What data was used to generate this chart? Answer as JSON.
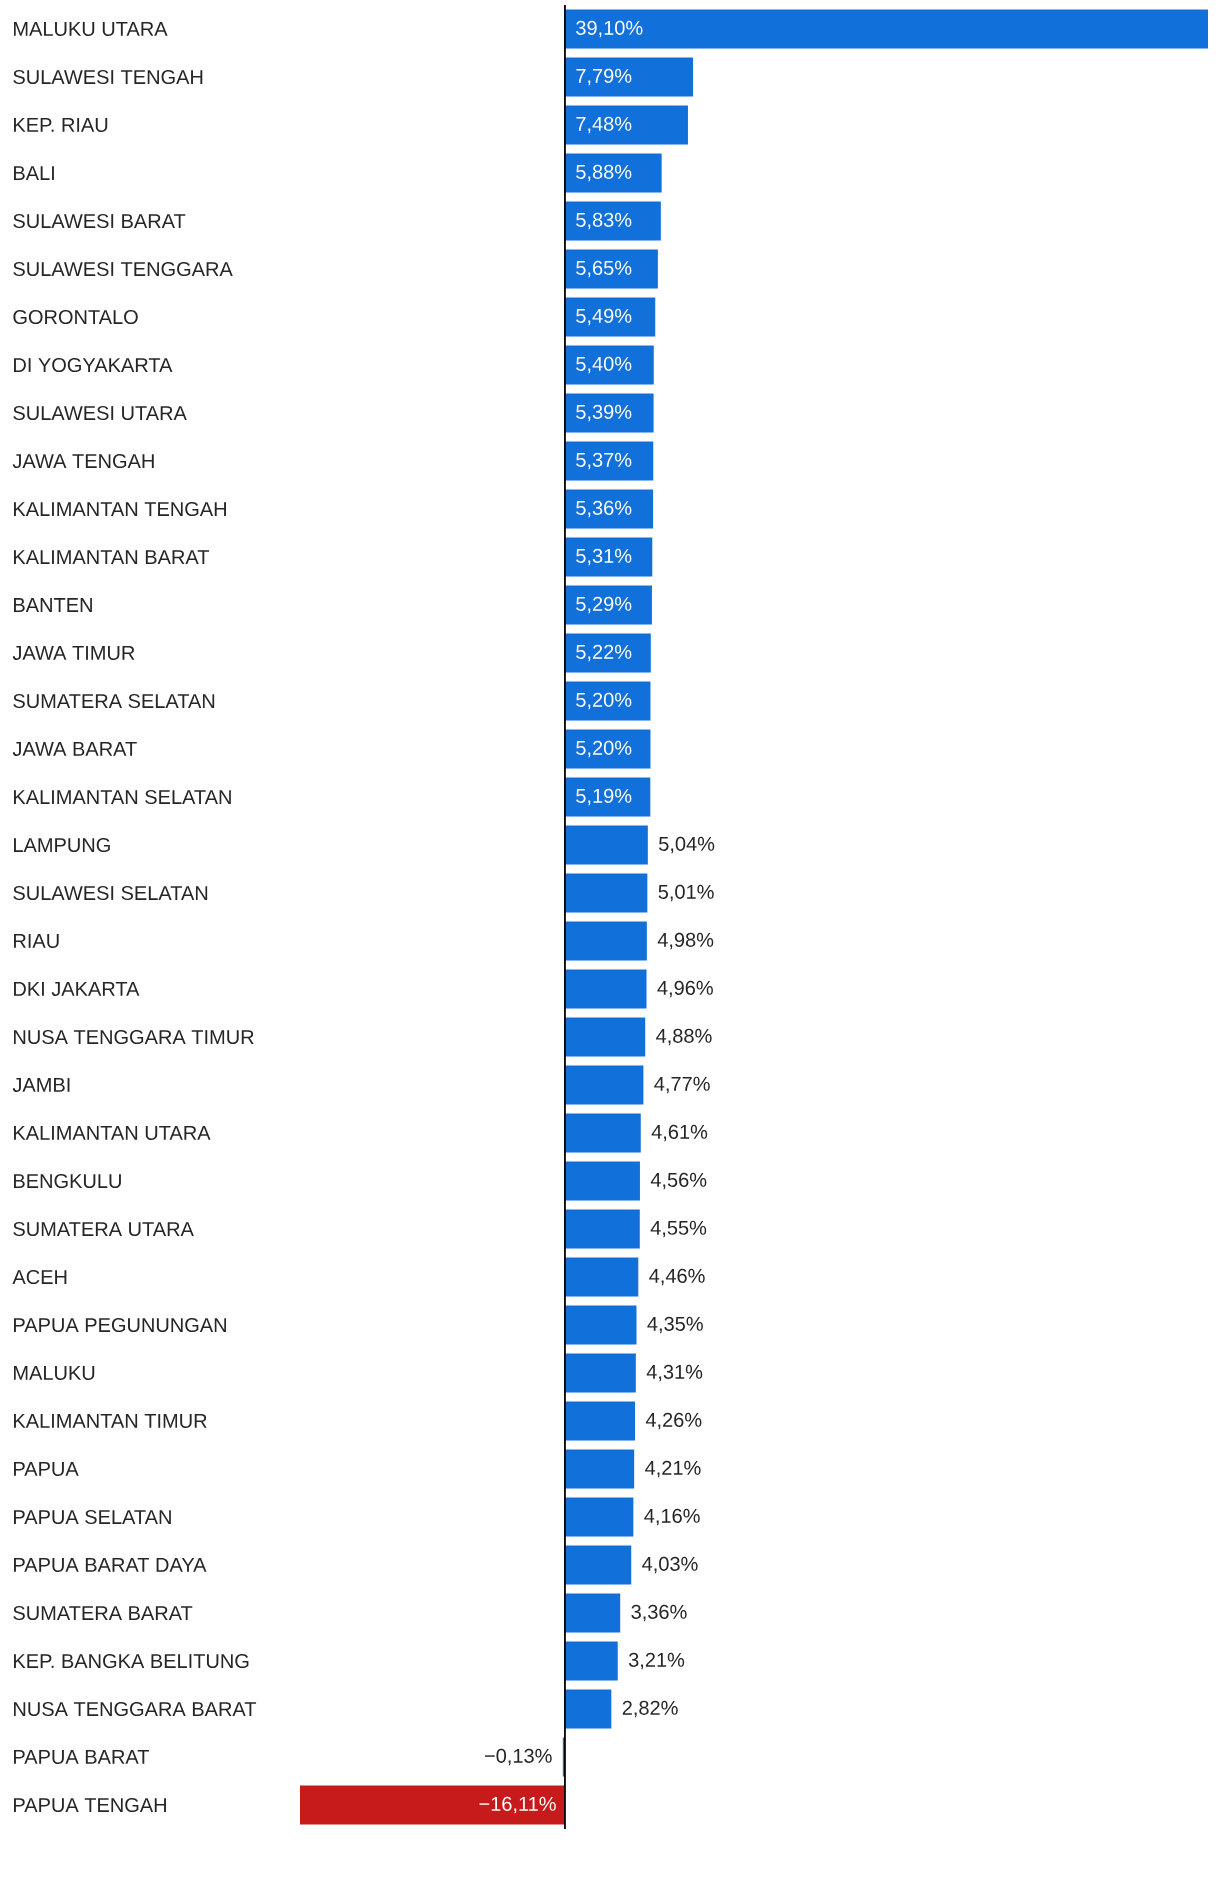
{
  "chart_data": {
    "type": "bar",
    "orientation": "horizontal",
    "categories": [
      "MALUKU UTARA",
      "SULAWESI TENGAH",
      "KEP. RIAU",
      "BALI",
      "SULAWESI BARAT",
      "SULAWESI TENGGARA",
      "GORONTALO",
      "DI YOGYAKARTA",
      "SULAWESI UTARA",
      "JAWA TENGAH",
      "KALIMANTAN TENGAH",
      "KALIMANTAN BARAT",
      "BANTEN",
      "JAWA TIMUR",
      "SUMATERA SELATAN",
      "JAWA BARAT",
      "KALIMANTAN SELATAN",
      "LAMPUNG",
      "SULAWESI SELATAN",
      "RIAU",
      "DKI JAKARTA",
      "NUSA TENGGARA TIMUR",
      "JAMBI",
      "KALIMANTAN UTARA",
      "BENGKULU",
      "SUMATERA UTARA",
      "ACEH",
      "PAPUA PEGUNUNGAN",
      "MALUKU",
      "KALIMANTAN TIMUR",
      "PAPUA",
      "PAPUA SELATAN",
      "PAPUA BARAT DAYA",
      "SUMATERA BARAT",
      "KEP. BANGKA BELITUNG",
      "NUSA TENGGARA BARAT",
      "PAPUA BARAT",
      "PAPUA TENGAH"
    ],
    "values": [
      39.1,
      7.79,
      7.48,
      5.88,
      5.83,
      5.65,
      5.49,
      5.4,
      5.39,
      5.37,
      5.36,
      5.31,
      5.29,
      5.22,
      5.2,
      5.2,
      5.19,
      5.04,
      5.01,
      4.98,
      4.96,
      4.88,
      4.77,
      4.61,
      4.56,
      4.55,
      4.46,
      4.35,
      4.31,
      4.26,
      4.21,
      4.16,
      4.03,
      3.36,
      3.21,
      2.82,
      -0.13,
      -16.11
    ],
    "value_labels": [
      "39,10%",
      "7,79%",
      "7,48%",
      "5,88%",
      "5,83%",
      "5,65%",
      "5,49%",
      "5,40%",
      "5,39%",
      "5,37%",
      "5,36%",
      "5,31%",
      "5,29%",
      "5,22%",
      "5,20%",
      "5,20%",
      "5,19%",
      "5,04%",
      "5,01%",
      "4,98%",
      "4,96%",
      "4,88%",
      "4,77%",
      "4,61%",
      "4,56%",
      "4,55%",
      "4,46%",
      "4,35%",
      "4,31%",
      "4,26%",
      "4,21%",
      "4,16%",
      "4,03%",
      "3,36%",
      "3,21%",
      "2,82%",
      "−0,13%",
      "−16,11%"
    ],
    "colors": [
      "#1170d9",
      "#1170d9",
      "#1170d9",
      "#1170d9",
      "#1170d9",
      "#1170d9",
      "#1170d9",
      "#1170d9",
      "#1170d9",
      "#1170d9",
      "#1170d9",
      "#1170d9",
      "#1170d9",
      "#1170d9",
      "#1170d9",
      "#1170d9",
      "#1170d9",
      "#1170d9",
      "#1170d9",
      "#1170d9",
      "#1170d9",
      "#1170d9",
      "#1170d9",
      "#1170d9",
      "#1170d9",
      "#1170d9",
      "#1170d9",
      "#1170d9",
      "#1170d9",
      "#1170d9",
      "#1170d9",
      "#1170d9",
      "#1170d9",
      "#1170d9",
      "#1170d9",
      "#1170d9",
      "#1170d9",
      "#c71b1b"
    ]
  }
}
